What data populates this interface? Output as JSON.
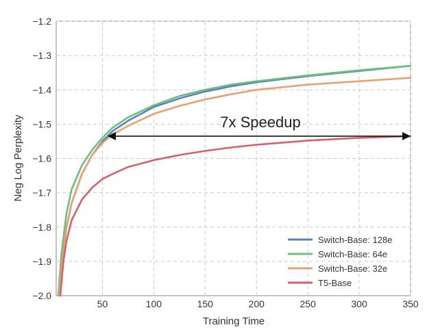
{
  "chart_data": {
    "type": "line",
    "title": "",
    "xlabel": "Training Time",
    "ylabel": "Neg Log Perplexity",
    "xlim": [
      5,
      350
    ],
    "ylim": [
      -2.0,
      -1.2
    ],
    "xticks": [
      50,
      100,
      150,
      200,
      250,
      300,
      350
    ],
    "yticks": [
      -2.0,
      -1.9,
      -1.8,
      -1.7,
      -1.6,
      -1.5,
      -1.4,
      -1.3,
      -1.2
    ],
    "xtick_labels": [
      "50",
      "100",
      "150",
      "200",
      "250",
      "300",
      "350"
    ],
    "ytick_labels": [
      "−2.0",
      "−1.9",
      "−1.8",
      "−1.7",
      "−1.6",
      "−1.5",
      "−1.4",
      "−1.3",
      "−1.2"
    ],
    "grid": true,
    "legend_position": "bottom-right",
    "annotation": {
      "text": "7x Speedup",
      "y": -1.535,
      "x_start": 55,
      "x_end": 350
    },
    "series": [
      {
        "name": "Switch-Base: 128e",
        "color": "#5b7fbf",
        "x": [
          8,
          10,
          15,
          20,
          30,
          40,
          50,
          60,
          75,
          100,
          125,
          150,
          175,
          200,
          250,
          300,
          350
        ],
        "y": [
          -2.0,
          -1.92,
          -1.8,
          -1.73,
          -1.645,
          -1.59,
          -1.55,
          -1.52,
          -1.49,
          -1.45,
          -1.425,
          -1.405,
          -1.39,
          -1.378,
          -1.36,
          -1.345,
          -1.33
        ]
      },
      {
        "name": "Switch-Base: 64e",
        "color": "#6cbf7a",
        "x": [
          7,
          10,
          15,
          20,
          30,
          40,
          50,
          60,
          75,
          100,
          125,
          150,
          175,
          200,
          250,
          300,
          350
        ],
        "y": [
          -2.0,
          -1.88,
          -1.76,
          -1.69,
          -1.62,
          -1.575,
          -1.54,
          -1.51,
          -1.48,
          -1.445,
          -1.418,
          -1.4,
          -1.385,
          -1.375,
          -1.358,
          -1.343,
          -1.33
        ]
      },
      {
        "name": "Switch-Base: 32e",
        "color": "#e8a070",
        "x": [
          8,
          10,
          15,
          20,
          30,
          40,
          50,
          60,
          75,
          100,
          125,
          150,
          175,
          200,
          250,
          300,
          350
        ],
        "y": [
          -2.0,
          -1.92,
          -1.8,
          -1.73,
          -1.645,
          -1.59,
          -1.555,
          -1.53,
          -1.505,
          -1.47,
          -1.447,
          -1.428,
          -1.413,
          -1.4,
          -1.385,
          -1.375,
          -1.365
        ]
      },
      {
        "name": "T5-Base",
        "color": "#d4606a",
        "x": [
          9,
          12,
          15,
          20,
          30,
          40,
          50,
          60,
          75,
          100,
          125,
          150,
          175,
          200,
          250,
          300,
          350
        ],
        "y": [
          -2.0,
          -1.9,
          -1.84,
          -1.78,
          -1.72,
          -1.685,
          -1.66,
          -1.645,
          -1.625,
          -1.605,
          -1.59,
          -1.578,
          -1.568,
          -1.56,
          -1.548,
          -1.54,
          -1.535
        ]
      }
    ]
  }
}
